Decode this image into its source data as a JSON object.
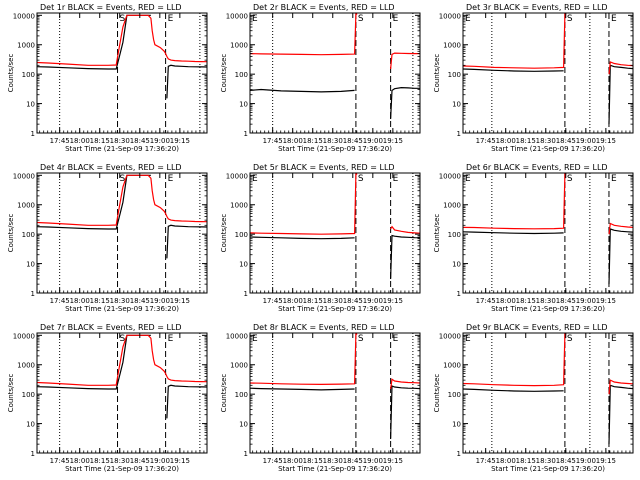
{
  "figure": {
    "start_time_label": "Start Time (21-Sep-09 17:36:20)",
    "ylabel": "Counts/sec",
    "x_tick_labels": [
      "17:45",
      "18:00",
      "18:15",
      "18:30",
      "18:45",
      "19:00",
      "19:15"
    ],
    "y_tick_labels": [
      "1",
      "10",
      "100",
      "1000",
      "10000"
    ],
    "marker_s": "S",
    "marker_e": "E",
    "marker_s_left": "S",
    "marker_e_left": "E",
    "colors": {
      "events": "#000000",
      "lld": "#ff0000",
      "axis": "#000000"
    }
  },
  "chart_data": [
    {
      "type": "line",
      "title": "Det 1r BLACK = Events, RED = LLD",
      "xlim_min": [
        -8.3,
        119
      ],
      "dotted_x_min": [
        8.67,
        113.67
      ],
      "s_x_min": [
        52
      ],
      "e_x_min": [
        88
      ],
      "series": [
        {
          "name": "Events",
          "x": [
            -8.3,
            0,
            15,
            30,
            45,
            51,
            53,
            56,
            59,
            62,
            65,
            68,
            72,
            75,
            77,
            78,
            79,
            80,
            84,
            87,
            88,
            89,
            90,
            92,
            95,
            100,
            105,
            110,
            115,
            119
          ],
          "y": [
            180,
            175,
            165,
            155,
            150,
            150,
            340,
            1200,
            10000,
            10000,
            10000,
            10000,
            10000,
            10000,
            10000,
            null,
            null,
            null,
            null,
            null,
            null,
            15,
            185,
            200,
            190,
            185,
            180,
            178,
            176,
            175
          ]
        },
        {
          "name": "LLD",
          "x": [
            -8.3,
            0,
            15,
            30,
            45,
            51,
            53,
            56,
            59,
            62,
            65,
            68,
            72,
            75,
            77,
            78,
            79,
            80,
            84,
            87,
            88,
            89,
            90,
            92,
            95,
            100,
            105,
            110,
            115,
            119
          ],
          "y": [
            250,
            240,
            220,
            200,
            200,
            205,
            700,
            4000,
            10000,
            10000,
            10000,
            10000,
            10000,
            10000,
            8000,
            3000,
            1500,
            1000,
            800,
            600,
            500,
            400,
            330,
            300,
            290,
            280,
            275,
            270,
            268,
            265
          ]
        }
      ]
    },
    {
      "type": "line",
      "title": "Det 2r BLACK = Events, RED = LLD",
      "xlim_min": [
        -8.3,
        119
      ],
      "dotted_x_min": [
        8.67,
        113.67
      ],
      "s_x_min": [
        71
      ],
      "e_x_min": [
        97
      ],
      "series": [
        {
          "name": "Events",
          "x": [
            -8.3,
            0,
            15,
            30,
            45,
            60,
            70,
            71,
            73,
            96,
            97,
            98,
            100,
            105,
            110,
            115,
            119
          ],
          "y": [
            28,
            30,
            27,
            26,
            25,
            26,
            28,
            null,
            null,
            null,
            3,
            28,
            32,
            35,
            34,
            33,
            33
          ]
        },
        {
          "name": "LLD",
          "x": [
            -8.3,
            0,
            15,
            30,
            45,
            60,
            70,
            71,
            72,
            74,
            96,
            97,
            98,
            100,
            105,
            110,
            115,
            119
          ],
          "y": [
            500,
            490,
            480,
            470,
            460,
            470,
            480,
            11000,
            11000,
            null,
            null,
            150,
            470,
            520,
            510,
            505,
            500,
            500
          ]
        }
      ]
    },
    {
      "type": "line",
      "title": "Det 3r BLACK = Events, RED = LLD",
      "xlim_min": [
        -8.3,
        119
      ],
      "dotted_x_min": [
        13.3,
        86.7
      ],
      "s_x_min": [
        68
      ],
      "e_x_min": [
        101
      ],
      "series": [
        {
          "name": "Events",
          "x": [
            -8.3,
            0,
            15,
            30,
            45,
            60,
            67,
            68,
            70,
            100,
            101,
            102,
            105,
            110,
            115,
            119
          ],
          "y": [
            150,
            145,
            135,
            128,
            125,
            128,
            130,
            null,
            null,
            null,
            2,
            200,
            180,
            170,
            160,
            155
          ]
        },
        {
          "name": "LLD",
          "x": [
            -8.3,
            0,
            15,
            30,
            45,
            60,
            67,
            68,
            69,
            71,
            100,
            101,
            102,
            105,
            110,
            115,
            119
          ],
          "y": [
            190,
            185,
            170,
            165,
            160,
            165,
            170,
            11000,
            11000,
            null,
            null,
            100,
            260,
            230,
            210,
            200,
            195
          ]
        }
      ]
    },
    {
      "type": "line",
      "title": "Det 4r BLACK = Events, RED = LLD",
      "xlim_min": [
        -8.3,
        119
      ],
      "dotted_x_min": [
        8.67,
        113.67
      ],
      "s_x_min": [
        52
      ],
      "e_x_min": [
        88
      ],
      "series": [
        {
          "name": "Events",
          "x": [
            -8.3,
            0,
            15,
            30,
            45,
            51,
            53,
            56,
            59,
            62,
            65,
            68,
            72,
            75,
            77,
            78,
            79,
            80,
            84,
            87,
            88,
            89,
            90,
            92,
            95,
            100,
            105,
            110,
            115,
            119
          ],
          "y": [
            180,
            175,
            165,
            155,
            150,
            150,
            340,
            1200,
            10000,
            10000,
            10000,
            10000,
            10000,
            10000,
            10000,
            null,
            null,
            null,
            null,
            null,
            null,
            15,
            185,
            200,
            190,
            185,
            180,
            178,
            176,
            175
          ]
        },
        {
          "name": "LLD",
          "x": [
            -8.3,
            0,
            15,
            30,
            45,
            51,
            53,
            56,
            59,
            62,
            65,
            68,
            72,
            75,
            77,
            78,
            79,
            80,
            84,
            87,
            88,
            89,
            90,
            92,
            95,
            100,
            105,
            110,
            115,
            119
          ],
          "y": [
            250,
            240,
            220,
            200,
            200,
            205,
            700,
            4000,
            10000,
            10000,
            10000,
            10000,
            10000,
            10000,
            8000,
            3000,
            1500,
            1000,
            800,
            600,
            500,
            400,
            330,
            300,
            290,
            280,
            275,
            270,
            268,
            265
          ]
        }
      ]
    },
    {
      "type": "line",
      "title": "Det 5r BLACK = Events, RED = LLD",
      "xlim_min": [
        -8.3,
        119
      ],
      "dotted_x_min": [
        8.67,
        113.67
      ],
      "s_x_min": [
        71
      ],
      "e_x_min": [
        97
      ],
      "series": [
        {
          "name": "Events",
          "x": [
            -8.3,
            0,
            15,
            30,
            45,
            60,
            70,
            71,
            73,
            96,
            97,
            98,
            100,
            105,
            110,
            115,
            119
          ],
          "y": [
            80,
            78,
            75,
            72,
            70,
            72,
            75,
            null,
            null,
            null,
            3,
            90,
            85,
            80,
            78,
            76,
            75
          ]
        },
        {
          "name": "LLD",
          "x": [
            -8.3,
            0,
            15,
            30,
            45,
            60,
            70,
            71,
            72,
            74,
            96,
            97,
            98,
            100,
            105,
            110,
            115,
            119
          ],
          "y": [
            110,
            108,
            105,
            102,
            100,
            102,
            105,
            11000,
            11000,
            null,
            null,
            150,
            180,
            140,
            125,
            115,
            110,
            108
          ]
        }
      ]
    },
    {
      "type": "line",
      "title": "Det 6r BLACK = Events, RED = LLD",
      "xlim_min": [
        -8.3,
        119
      ],
      "dotted_x_min": [
        13.3,
        86.7
      ],
      "s_x_min": [
        68
      ],
      "e_x_min": [
        101
      ],
      "series": [
        {
          "name": "Events",
          "x": [
            -8.3,
            0,
            15,
            30,
            45,
            60,
            67,
            68,
            70,
            100,
            101,
            102,
            105,
            110,
            115,
            119
          ],
          "y": [
            120,
            118,
            112,
            108,
            105,
            108,
            110,
            null,
            null,
            null,
            2,
            150,
            135,
            125,
            120,
            118
          ]
        },
        {
          "name": "LLD",
          "x": [
            -8.3,
            0,
            15,
            30,
            45,
            60,
            67,
            68,
            69,
            71,
            100,
            101,
            102,
            105,
            110,
            115,
            119
          ],
          "y": [
            170,
            168,
            160,
            155,
            152,
            155,
            160,
            11000,
            11000,
            null,
            null,
            100,
            230,
            200,
            185,
            175,
            170
          ]
        }
      ]
    },
    {
      "type": "line",
      "title": "Det 7r BLACK = Events, RED = LLD",
      "xlim_min": [
        -8.3,
        119
      ],
      "dotted_x_min": [
        8.67,
        113.67
      ],
      "s_x_min": [
        52
      ],
      "e_x_min": [
        88
      ],
      "series": [
        {
          "name": "Events",
          "x": [
            -8.3,
            0,
            15,
            30,
            45,
            51,
            53,
            56,
            59,
            62,
            65,
            68,
            72,
            75,
            77,
            78,
            79,
            80,
            84,
            87,
            88,
            89,
            90,
            92,
            95,
            100,
            105,
            110,
            115,
            119
          ],
          "y": [
            180,
            175,
            165,
            155,
            150,
            150,
            340,
            1200,
            10000,
            10000,
            10000,
            10000,
            10000,
            10000,
            10000,
            null,
            null,
            null,
            null,
            null,
            null,
            15,
            185,
            200,
            190,
            185,
            180,
            178,
            176,
            175
          ]
        },
        {
          "name": "LLD",
          "x": [
            -8.3,
            0,
            15,
            30,
            45,
            51,
            53,
            56,
            59,
            62,
            65,
            68,
            72,
            75,
            77,
            78,
            79,
            80,
            84,
            87,
            88,
            89,
            90,
            92,
            95,
            100,
            105,
            110,
            115,
            119
          ],
          "y": [
            250,
            240,
            220,
            200,
            200,
            205,
            700,
            4000,
            10000,
            10000,
            10000,
            10000,
            10000,
            10000,
            8000,
            3000,
            1500,
            1000,
            800,
            600,
            500,
            400,
            330,
            300,
            290,
            280,
            275,
            270,
            268,
            265
          ]
        }
      ]
    },
    {
      "type": "line",
      "title": "Det 8r BLACK = Events, RED = LLD",
      "xlim_min": [
        -8.3,
        119
      ],
      "dotted_x_min": [
        8.67,
        113.67
      ],
      "s_x_min": [
        71
      ],
      "e_x_min": [
        97
      ],
      "series": [
        {
          "name": "Events",
          "x": [
            -8.3,
            0,
            15,
            30,
            45,
            60,
            70,
            71,
            73,
            96,
            97,
            98,
            100,
            105,
            110,
            115,
            119
          ],
          "y": [
            160,
            155,
            150,
            145,
            140,
            145,
            150,
            null,
            null,
            null,
            3,
            190,
            175,
            165,
            160,
            158,
            155
          ]
        },
        {
          "name": "LLD",
          "x": [
            -8.3,
            0,
            15,
            30,
            45,
            60,
            70,
            71,
            72,
            74,
            96,
            97,
            98,
            100,
            105,
            110,
            115,
            119
          ],
          "y": [
            240,
            235,
            225,
            218,
            215,
            220,
            225,
            11000,
            11000,
            null,
            null,
            150,
            320,
            280,
            260,
            250,
            245,
            240
          ]
        }
      ]
    },
    {
      "type": "line",
      "title": "Det 9r BLACK = Events, RED = LLD",
      "xlim_min": [
        -8.3,
        119
      ],
      "dotted_x_min": [
        13.3,
        86.7
      ],
      "s_x_min": [
        68
      ],
      "e_x_min": [
        101
      ],
      "series": [
        {
          "name": "Events",
          "x": [
            -8.3,
            0,
            15,
            30,
            45,
            60,
            67,
            68,
            70,
            100,
            101,
            102,
            105,
            110,
            115,
            119
          ],
          "y": [
            150,
            145,
            135,
            128,
            125,
            128,
            130,
            null,
            null,
            null,
            2,
            200,
            180,
            170,
            160,
            155
          ]
        },
        {
          "name": "LLD",
          "x": [
            -8.3,
            0,
            15,
            30,
            45,
            60,
            67,
            68,
            69,
            71,
            100,
            101,
            102,
            105,
            110,
            115,
            119
          ],
          "y": [
            230,
            225,
            210,
            200,
            195,
            200,
            210,
            11000,
            11000,
            null,
            null,
            100,
            300,
            260,
            240,
            230,
            225
          ]
        }
      ]
    }
  ]
}
